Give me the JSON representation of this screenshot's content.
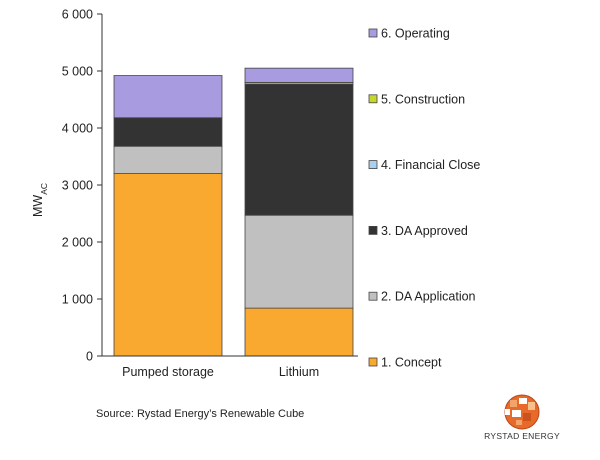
{
  "chart_data": {
    "type": "bar",
    "stacked": true,
    "categories": [
      "Pumped storage",
      "Lithium"
    ],
    "ylabel_main": "MW",
    "ylabel_sub": "AC",
    "ylim": [
      0,
      6000
    ],
    "yticks": [
      0,
      1000,
      2000,
      3000,
      4000,
      5000,
      6000
    ],
    "ytick_labels": [
      "0",
      "1 000",
      "2 000",
      "3 000",
      "4 000",
      "5 000",
      "6 000"
    ],
    "grid": false,
    "legend_position": "right",
    "series": [
      {
        "name": "1. Concept",
        "color": "#F9A830",
        "values": [
          3200,
          840
        ]
      },
      {
        "name": "2. DA Application",
        "color": "#C0C0C0",
        "values": [
          480,
          1630
        ]
      },
      {
        "name": "3. DA Approved",
        "color": "#333333",
        "values": [
          500,
          2300
        ]
      },
      {
        "name": "4. Financial Close",
        "color": "#A9D0EE",
        "values": [
          0,
          0
        ]
      },
      {
        "name": "5. Construction",
        "color": "#C6D530",
        "values": [
          0,
          30
        ]
      },
      {
        "name": "6. Operating",
        "color": "#A89BE0",
        "values": [
          740,
          250
        ]
      }
    ]
  },
  "source": "Source: Rystad Energy’s Renewable Cube",
  "logo_text": "RYSTAD ENERGY"
}
